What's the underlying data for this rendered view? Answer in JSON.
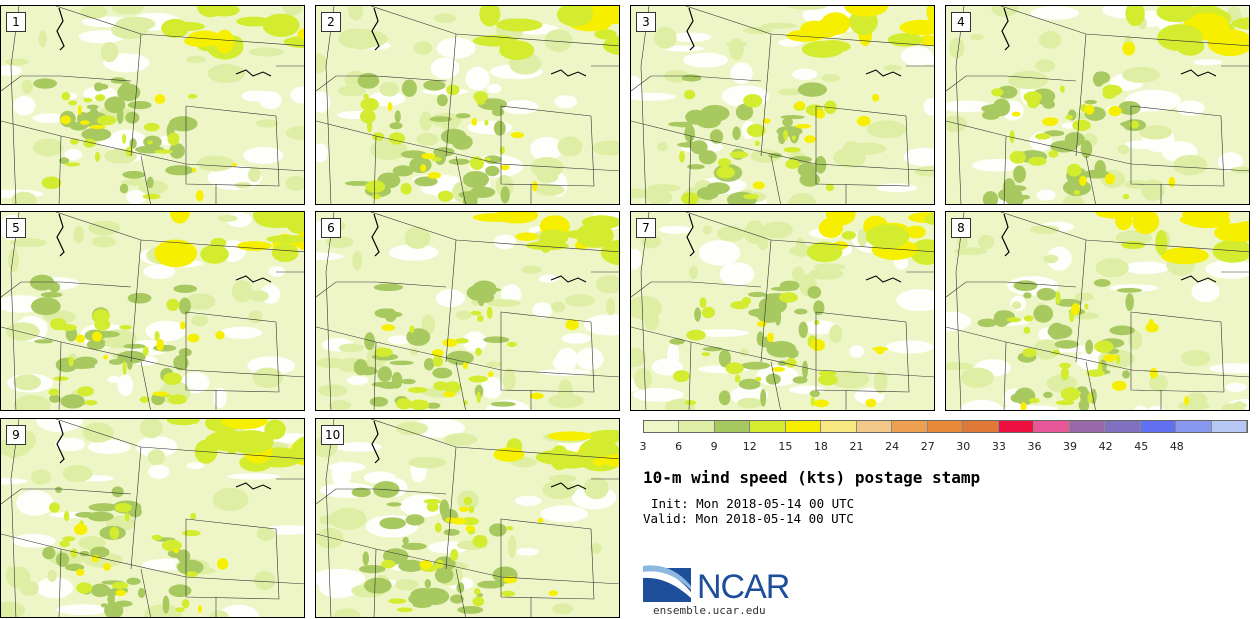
{
  "panels": [
    {
      "label": "1"
    },
    {
      "label": "2"
    },
    {
      "label": "3"
    },
    {
      "label": "4"
    },
    {
      "label": "5"
    },
    {
      "label": "6"
    },
    {
      "label": "7"
    },
    {
      "label": "8"
    },
    {
      "label": "9"
    },
    {
      "label": "10"
    }
  ],
  "colorbar": {
    "ticks": [
      "3",
      "6",
      "9",
      "12",
      "15",
      "18",
      "21",
      "24",
      "27",
      "30",
      "33",
      "36",
      "39",
      "42",
      "45",
      "48"
    ],
    "colors": [
      "#eef6c8",
      "#deeea4",
      "#a8c860",
      "#d4ec30",
      "#f6f000",
      "#f8e880",
      "#f4c888",
      "#eca050",
      "#e88838",
      "#e07838",
      "#ee1040",
      "#e85898",
      "#9868a8",
      "#8070c0",
      "#6070f0",
      "#8898f0",
      "#b8c8f4"
    ]
  },
  "title": "10-m wind speed (kts) postage stamp",
  "init": "Init: Mon 2018-05-14 00 UTC",
  "valid": "Valid: Mon 2018-05-14 00 UTC",
  "logo": {
    "name": "NCAR",
    "url": "ensemble.ucar.edu"
  }
}
